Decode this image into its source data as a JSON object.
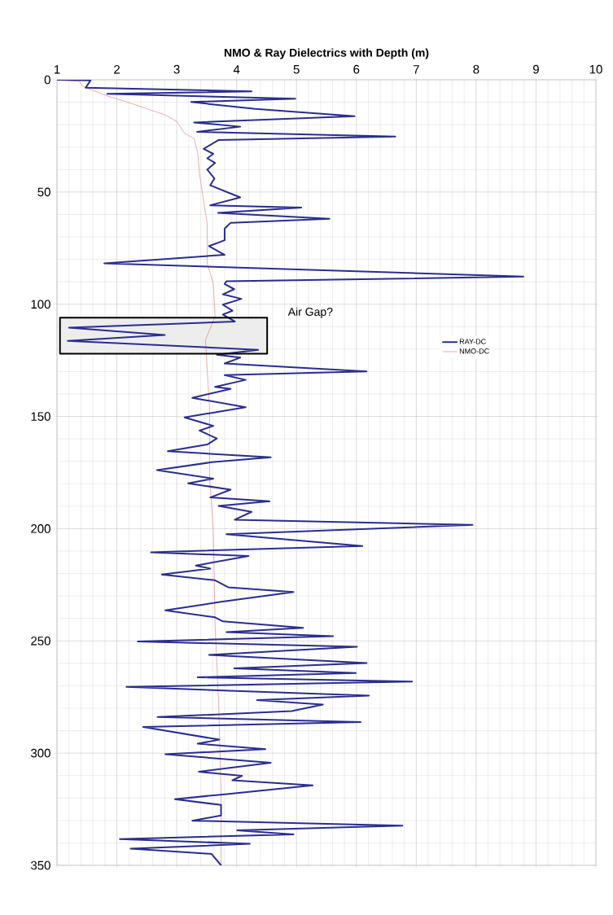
{
  "chart_data": {
    "type": "line",
    "title": "NMO & Ray Dielectrics with Depth (m)",
    "xlim": [
      1,
      10
    ],
    "ylim": [
      350,
      0
    ],
    "xticks": [
      1,
      2,
      3,
      4,
      5,
      6,
      7,
      8,
      9,
      10
    ],
    "yticks": [
      0,
      50,
      100,
      150,
      200,
      250,
      300,
      350
    ],
    "grid": true,
    "legend": "right",
    "marker": "none",
    "line_style": "solid",
    "bands": [
      {
        "axis": "y",
        "from": 106,
        "to": 122,
        "label": "Air Gap?"
      }
    ],
    "series": [
      {
        "name": "RAY-DC",
        "color": "#2b2d8e",
        "x": [
          1.0,
          1.56,
          1.48,
          4.25,
          1.84,
          4.98,
          3.24,
          4.31,
          5.97,
          3.29,
          4.06,
          3.34,
          6.65,
          3.7,
          3.45,
          3.61,
          3.51,
          3.64,
          3.51,
          3.63,
          3.56,
          4.06,
          3.56,
          5.08,
          3.69,
          5.55,
          3.9,
          3.8,
          3.8,
          3.54,
          3.8,
          1.79,
          8.79,
          3.83,
          3.8,
          3.96,
          3.77,
          4.08,
          3.77,
          3.93,
          3.77,
          3.97,
          1.2,
          2.8,
          1.18,
          4.36,
          3.67,
          4.06,
          3.8,
          6.17,
          3.8,
          4.15,
          3.64,
          3.9,
          3.26,
          4.15,
          3.13,
          3.61,
          3.38,
          3.67,
          3.51,
          2.85,
          4.57,
          3.58,
          2.67,
          3.61,
          3.19,
          3.9,
          3.56,
          4.55,
          3.7,
          4.25,
          3.97,
          7.94,
          3.83,
          6.1,
          2.57,
          4.2,
          3.32,
          3.56,
          2.75,
          3.64,
          3.86,
          4.95,
          3.74,
          2.81,
          3.64,
          3.77,
          5.11,
          3.83,
          5.61,
          2.35,
          6.01,
          3.54,
          6.17,
          3.96,
          5.99,
          3.35,
          6.93,
          2.16,
          6.21,
          4.34,
          5.44,
          4.92,
          2.68,
          6.07,
          2.44,
          3.71,
          3.35,
          4.48,
          2.81,
          4.57,
          3.37,
          4.09,
          3.93,
          5.27,
          3.77,
          2.97,
          3.74,
          3.74,
          3.26,
          6.77,
          4.01,
          4.95,
          2.05,
          4.22,
          2.23,
          3.58,
          3.74
        ],
        "values": [
          0,
          0.3,
          3.5,
          5.2,
          6.3,
          8.4,
          9.9,
          13,
          16.2,
          19,
          20.9,
          23.2,
          25.3,
          26.8,
          30.8,
          33,
          35,
          37,
          40,
          44,
          47,
          52.4,
          55.9,
          56.9,
          59.3,
          61.9,
          63.7,
          66.3,
          71.5,
          74.1,
          78,
          81.8,
          87.7,
          89.8,
          91,
          93.3,
          95.6,
          97.6,
          100.2,
          102.9,
          104.6,
          107.7,
          110.4,
          113.7,
          116.3,
          120.3,
          122.5,
          123.8,
          126.4,
          129.9,
          131.6,
          133.7,
          136.8,
          137.7,
          141.7,
          145.9,
          150.4,
          154.2,
          156.3,
          159.8,
          162.5,
          165.5,
          168.2,
          170.4,
          173.9,
          177.7,
          179.8,
          182.6,
          186.1,
          187.8,
          189.9,
          192.5,
          196,
          198.3,
          202.5,
          207.7,
          210.5,
          212.2,
          216.4,
          217.8,
          220.4,
          223,
          226.1,
          228.2,
          232.6,
          236.4,
          239.5,
          241.3,
          244.2,
          246.1,
          247.9,
          250.3,
          252.6,
          256.2,
          259.9,
          262.2,
          264.3,
          266.2,
          268.1,
          270.5,
          274.4,
          276.4,
          278.4,
          281.3,
          283.9,
          286.2,
          288.3,
          294,
          295.8,
          298.2,
          300.5,
          304.3,
          308.3,
          310.1,
          312.1,
          314.4,
          318.4,
          320.5,
          323.1,
          327.8,
          330.1,
          332.3,
          334.4,
          336.2,
          338.3,
          340.4,
          342.6,
          344.9,
          350
        ]
      },
      {
        "name": "NMO-DC",
        "color": "#d9786e",
        "x": [
          1.0,
          1.37,
          1.43,
          1.85,
          2.17,
          2.81,
          3.0,
          3.13,
          3.29,
          3.35,
          3.38,
          3.51,
          3.51,
          3.61,
          3.64,
          3.48,
          3.51,
          3.55,
          3.55,
          3.61,
          3.63,
          3.64,
          3.7,
          3.74,
          3.74
        ],
        "values": [
          0,
          0.7,
          3,
          7.3,
          9.9,
          15.7,
          18.6,
          23.9,
          26.1,
          32.6,
          41.9,
          64.6,
          82,
          90.7,
          105.5,
          115.9,
          129.9,
          147.3,
          177.7,
          200.4,
          226.5,
          243,
          277.8,
          317,
          350
        ]
      }
    ]
  }
}
